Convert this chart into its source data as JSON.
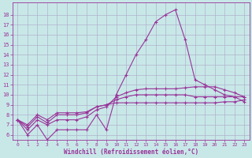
{
  "title": "",
  "xlabel": "Windchill (Refroidissement éolien,°C)",
  "ylabel": "",
  "background_color": "#c8e8e8",
  "grid_color": "#b0b0cc",
  "line_color": "#993399",
  "x_values": [
    0,
    1,
    2,
    3,
    4,
    5,
    6,
    7,
    8,
    9,
    10,
    11,
    12,
    13,
    14,
    15,
    16,
    17,
    18,
    19,
    20,
    21,
    22,
    23
  ],
  "series1": [
    7.5,
    6.0,
    7.0,
    5.5,
    6.5,
    6.5,
    6.5,
    6.5,
    8.0,
    6.5,
    10.0,
    12.0,
    14.0,
    15.5,
    17.3,
    18.0,
    18.5,
    15.5,
    11.5,
    11.0,
    10.5,
    10.0,
    9.8,
    9.3
  ],
  "series2": [
    7.5,
    6.5,
    7.5,
    7.0,
    7.5,
    7.5,
    7.5,
    7.8,
    8.5,
    8.8,
    9.8,
    10.2,
    10.5,
    10.6,
    10.6,
    10.6,
    10.6,
    10.7,
    10.8,
    10.8,
    10.8,
    10.5,
    10.2,
    9.8
  ],
  "series3": [
    7.5,
    6.8,
    7.8,
    7.2,
    8.0,
    8.0,
    8.0,
    8.2,
    8.8,
    9.0,
    9.5,
    9.8,
    10.0,
    10.0,
    10.0,
    10.0,
    10.0,
    10.0,
    9.8,
    9.8,
    9.8,
    9.8,
    9.8,
    9.8
  ],
  "series4": [
    7.5,
    7.0,
    8.0,
    7.5,
    8.2,
    8.2,
    8.2,
    8.3,
    8.8,
    9.0,
    9.2,
    9.2,
    9.2,
    9.2,
    9.2,
    9.2,
    9.2,
    9.2,
    9.2,
    9.2,
    9.2,
    9.3,
    9.3,
    9.5
  ],
  "ylim": [
    5.5,
    19.2
  ],
  "yticks": [
    6,
    7,
    8,
    9,
    10,
    11,
    12,
    13,
    14,
    15,
    16,
    17,
    18
  ],
  "xlim": [
    -0.5,
    23.5
  ],
  "xticks": [
    0,
    1,
    2,
    3,
    4,
    5,
    6,
    7,
    8,
    9,
    10,
    11,
    12,
    13,
    14,
    15,
    16,
    17,
    18,
    19,
    20,
    21,
    22,
    23
  ]
}
